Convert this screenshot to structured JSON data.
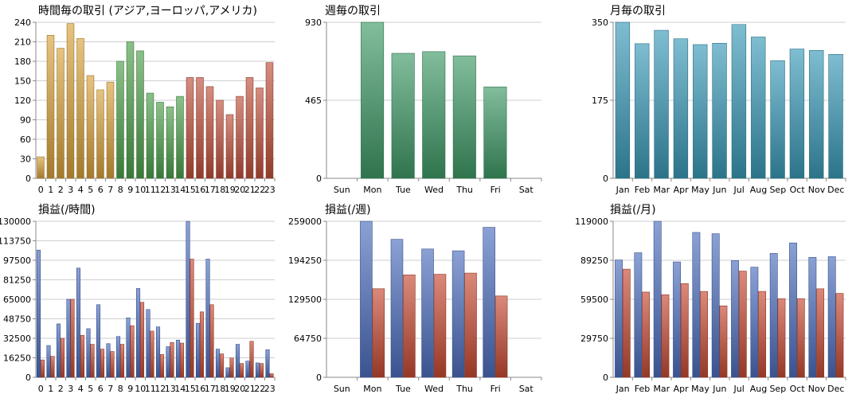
{
  "chart_data": [
    {
      "type": "bar",
      "title": "時間毎の取引 (アジア,ヨーロッパ,アメリカ)",
      "categories": [
        "0",
        "1",
        "2",
        "3",
        "4",
        "5",
        "6",
        "7",
        "8",
        "9",
        "10",
        "11",
        "12",
        "13",
        "14",
        "15",
        "16",
        "17",
        "18",
        "19",
        "20",
        "21",
        "22",
        "23"
      ],
      "values": [
        33,
        220,
        200,
        238,
        215,
        158,
        136,
        148,
        180,
        210,
        196,
        131,
        117,
        110,
        126,
        155,
        155,
        141,
        120,
        98,
        126,
        155,
        139,
        178
      ],
      "ylim": [
        0,
        240
      ],
      "yticks": [
        0,
        30,
        60,
        90,
        120,
        150,
        180,
        210,
        240
      ],
      "colors": [
        "#d9a23a",
        "#d9a23a",
        "#d9a23a",
        "#d9a23a",
        "#d9a23a",
        "#d9a23a",
        "#d9a23a",
        "#d9a23a",
        "#4da04a",
        "#4da04a",
        "#4da04a",
        "#4da04a",
        "#4da04a",
        "#4da04a",
        "#4da04a",
        "#c0503a",
        "#c0503a",
        "#c0503a",
        "#c0503a",
        "#c0503a",
        "#c0503a",
        "#c0503a",
        "#c0503a",
        "#c0503a"
      ],
      "grid": true
    },
    {
      "type": "bar",
      "title": "週毎の取引",
      "categories": [
        "Sun",
        "Mon",
        "Tue",
        "Wed",
        "Thu",
        "Fri",
        "Sat"
      ],
      "values": [
        0,
        930,
        745,
        755,
        730,
        545,
        0
      ],
      "ylim": [
        0,
        930
      ],
      "yticks": [
        0,
        465,
        930
      ],
      "colors": [
        "#3f9a66"
      ],
      "grid": true
    },
    {
      "type": "bar",
      "title": "月毎の取引",
      "categories": [
        "Jan",
        "Feb",
        "Mar",
        "Apr",
        "May",
        "Jun",
        "Jul",
        "Aug",
        "Sep",
        "Oct",
        "Nov",
        "Dec"
      ],
      "values": [
        350,
        302,
        332,
        313,
        300,
        303,
        345,
        317,
        264,
        290,
        287,
        278
      ],
      "ylim": [
        0,
        350
      ],
      "yticks": [
        0,
        175,
        350
      ],
      "colors": [
        "#3a9ab8"
      ],
      "grid": true
    },
    {
      "type": "bar",
      "title": "損益(/時間)",
      "categories": [
        "0",
        "1",
        "2",
        "3",
        "4",
        "5",
        "6",
        "7",
        "8",
        "9",
        "10",
        "11",
        "12",
        "13",
        "14",
        "15",
        "16",
        "17",
        "18",
        "19",
        "20",
        "21",
        "22",
        "23"
      ],
      "series": [
        {
          "values": [
            106000,
            26500,
            44500,
            65000,
            91000,
            40500,
            60500,
            28000,
            34000,
            49500,
            74000,
            56500,
            42000,
            25500,
            31000,
            130000,
            45000,
            98500,
            23500,
            8000,
            27500,
            13500,
            12000,
            23000
          ]
        },
        {
          "values": [
            14500,
            17500,
            32500,
            65000,
            35000,
            27500,
            23500,
            21500,
            27500,
            43000,
            62500,
            38500,
            19000,
            29000,
            28500,
            98500,
            54500,
            60500,
            19500,
            16000,
            11500,
            30000,
            11500,
            3000
          ]
        }
      ],
      "ylim": [
        0,
        130000
      ],
      "yticks": [
        0,
        16250,
        32500,
        48750,
        65000,
        81250,
        97500,
        113750,
        130000
      ],
      "colors": [
        "#4d6fbf",
        "#c74a33"
      ],
      "grid": true
    },
    {
      "type": "bar",
      "title": "損益(/週)",
      "categories": [
        "Sun",
        "Mon",
        "Tue",
        "Wed",
        "Thu",
        "Fri",
        "Sat"
      ],
      "series": [
        {
          "values": [
            0,
            259000,
            229000,
            213000,
            210000,
            249000,
            0
          ]
        },
        {
          "values": [
            0,
            147000,
            170000,
            171000,
            173000,
            135000,
            0
          ]
        }
      ],
      "ylim": [
        0,
        259000
      ],
      "yticks": [
        0,
        64750,
        129500,
        194250,
        259000
      ],
      "colors": [
        "#4d6fbf",
        "#c74a33"
      ],
      "grid": true
    },
    {
      "type": "bar",
      "title": "損益(/月)",
      "categories": [
        "Jan",
        "Feb",
        "Mar",
        "Apr",
        "May",
        "Jun",
        "Jul",
        "Aug",
        "Sep",
        "Oct",
        "Nov",
        "Dec"
      ],
      "series": [
        {
          "values": [
            89500,
            95000,
            119000,
            88000,
            110500,
            109500,
            89000,
            84000,
            94500,
            102500,
            91500,
            92000
          ]
        },
        {
          "values": [
            82500,
            65000,
            63000,
            71500,
            65500,
            54500,
            81000,
            65500,
            60000,
            60000,
            67500,
            64000
          ]
        }
      ],
      "ylim": [
        0,
        119000
      ],
      "yticks": [
        0,
        29750,
        59500,
        89250,
        119000
      ],
      "colors": [
        "#4d6fbf",
        "#c74a33"
      ],
      "grid": true
    }
  ]
}
